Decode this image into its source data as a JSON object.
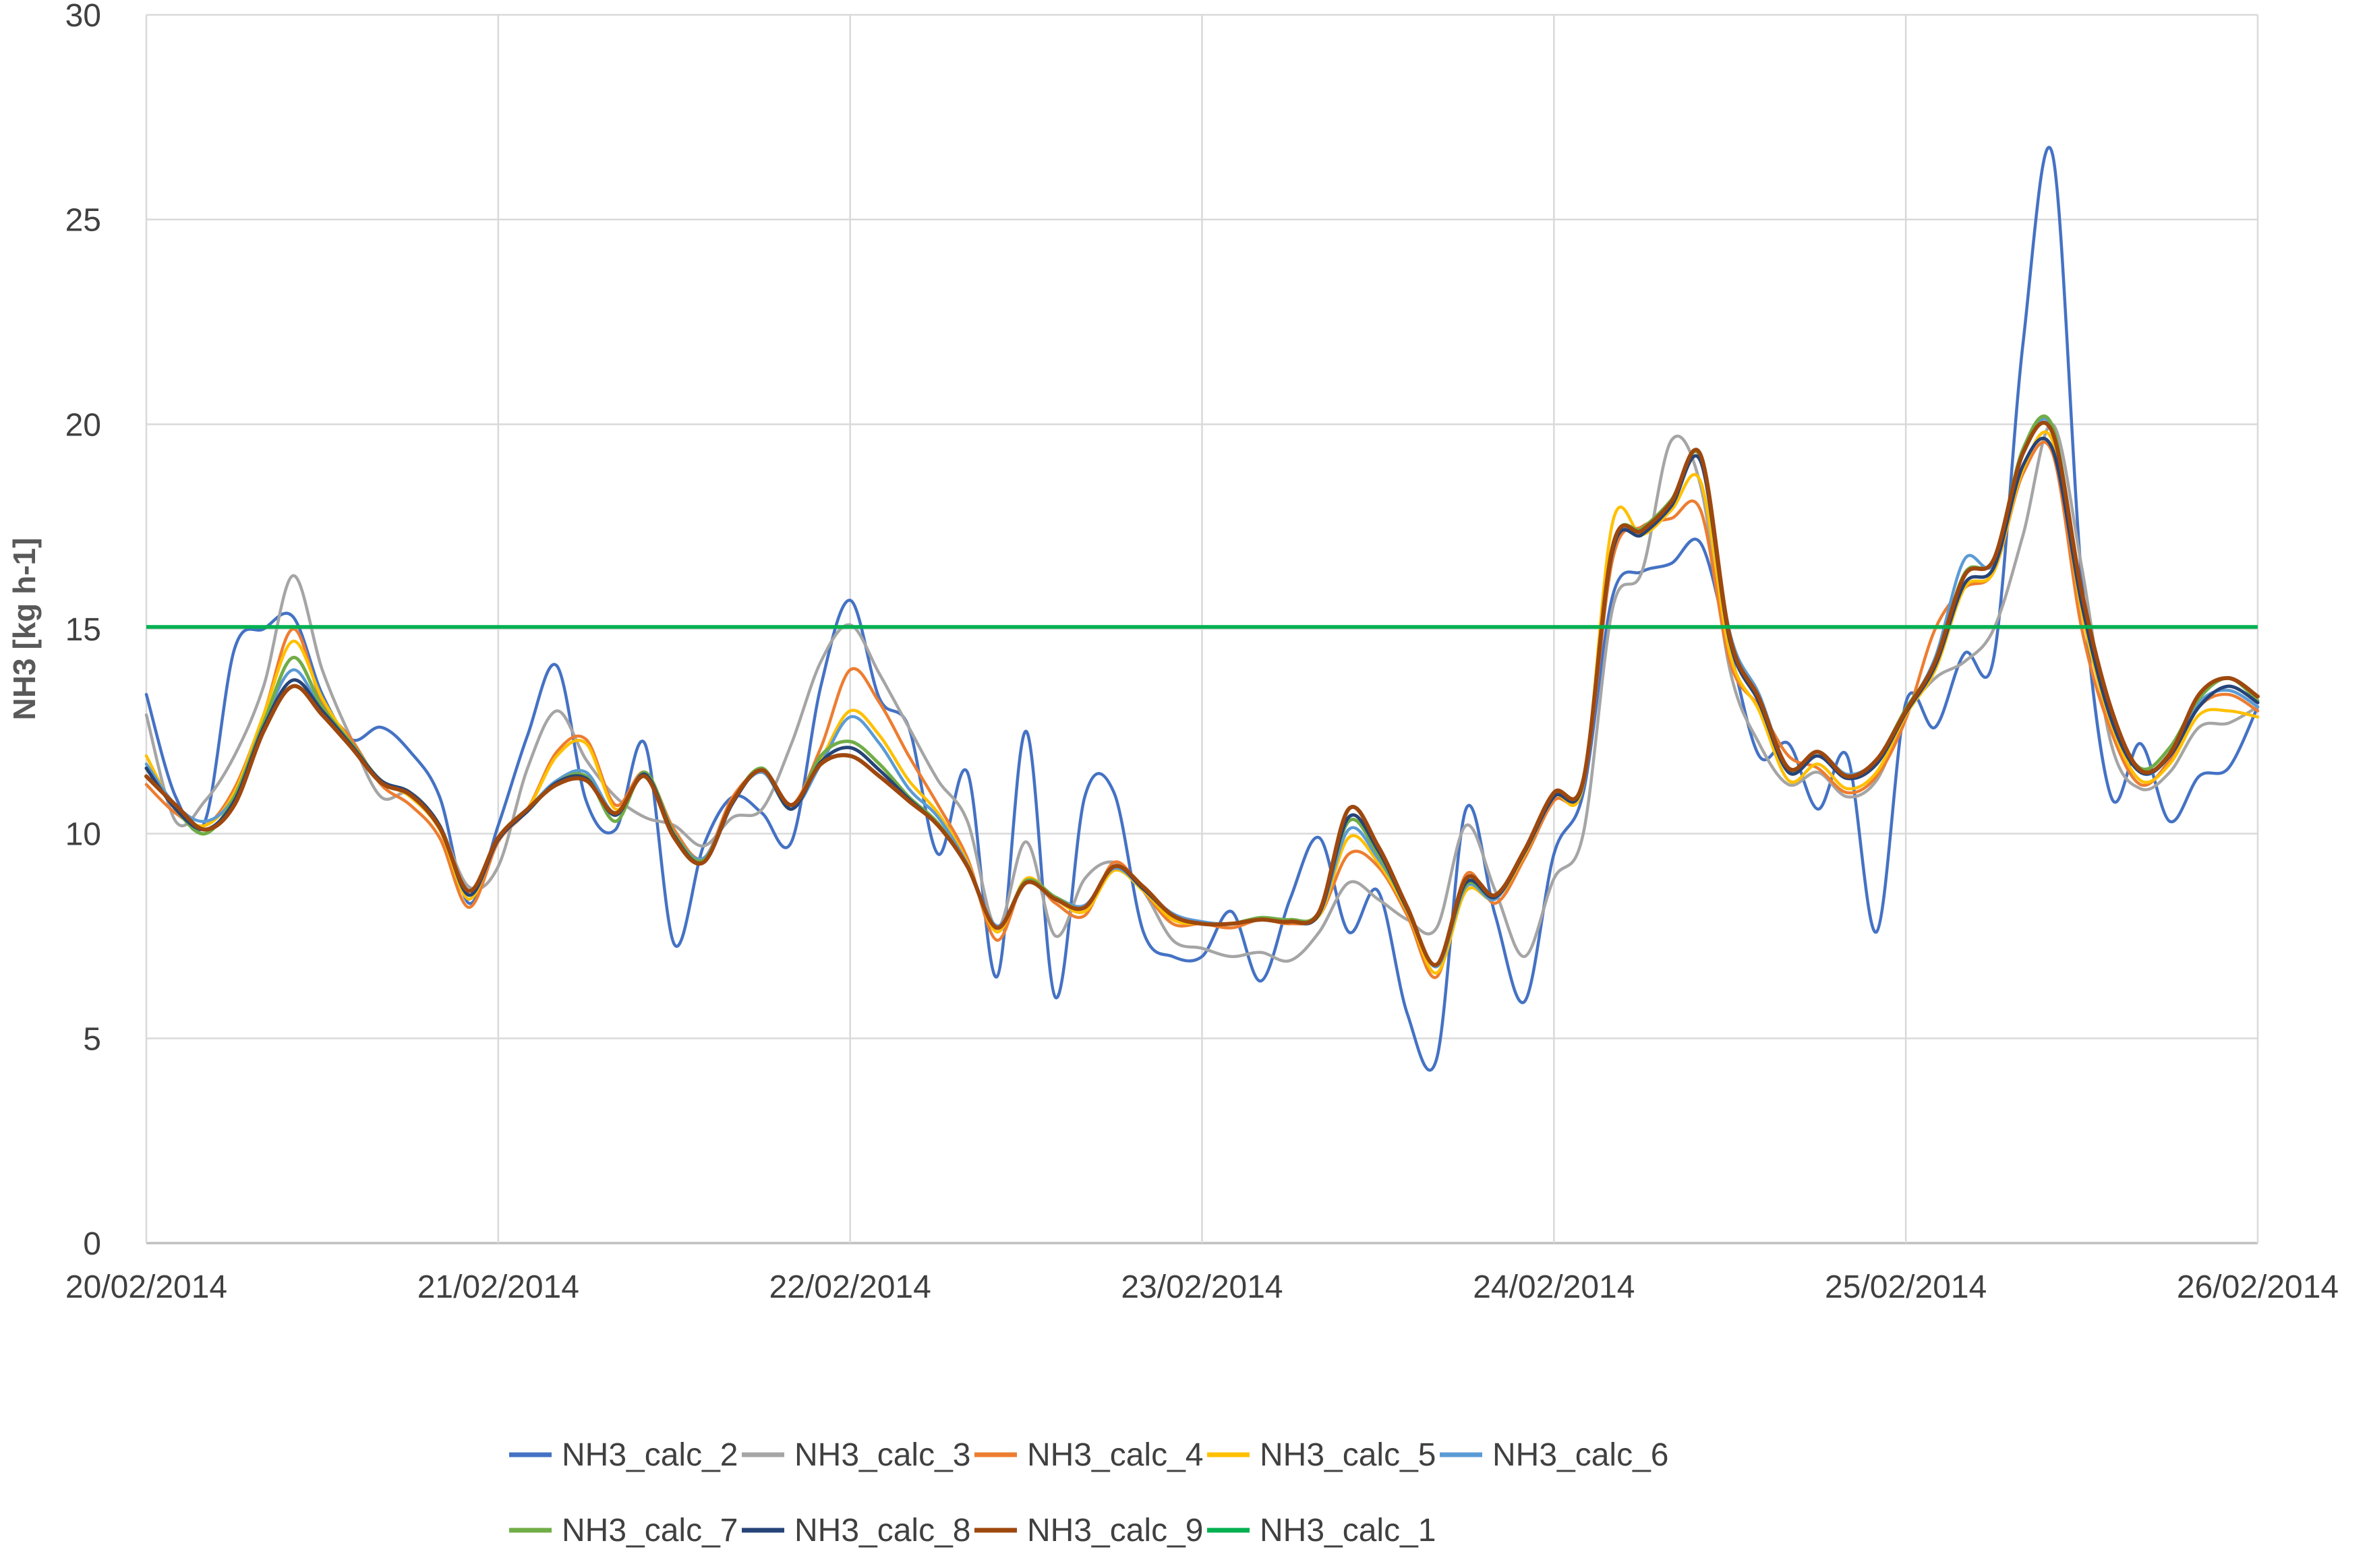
{
  "chart_data": {
    "type": "line",
    "title": "",
    "xlabel": "",
    "ylabel": "NH3 [kg h-1]",
    "ylim": [
      0,
      30
    ],
    "yticks": [
      0,
      5,
      10,
      15,
      20,
      25,
      30
    ],
    "x_tick_labels": [
      "20/02/2014",
      "21/02/2014",
      "22/02/2014",
      "23/02/2014",
      "24/02/2014",
      "25/02/2014",
      "26/02/2014"
    ],
    "x_hours_per_point": 2,
    "x_total_hours": 144,
    "grid": true,
    "legend_position": "bottom",
    "reference_line": {
      "name": "NH3_calc_1",
      "value": 15.05,
      "color": "#00B050"
    },
    "series": [
      {
        "name": "NH3_calc_2",
        "color": "#4472C4",
        "values": [
          13.4,
          10.9,
          10.3,
          14.5,
          15.0,
          15.3,
          13.4,
          12.3,
          12.6,
          12.0,
          10.9,
          8.3,
          10.2,
          12.4,
          14.1,
          10.8,
          10.1,
          12.2,
          7.3,
          9.7,
          10.9,
          10.5,
          9.8,
          13.6,
          15.7,
          13.3,
          12.6,
          9.5,
          11.5,
          6.5,
          12.5,
          6.0,
          10.9,
          11.0,
          7.6,
          7.0,
          7.0,
          8.1,
          6.4,
          8.4,
          9.9,
          7.6,
          8.6,
          5.6,
          4.5,
          10.6,
          8.0,
          5.9,
          9.5,
          11.0,
          15.8,
          16.4,
          16.6,
          17.1,
          14.5,
          11.9,
          12.2,
          10.6,
          11.9,
          7.6,
          13.2,
          12.6,
          14.4,
          14.3,
          22.0,
          26.6,
          16.2,
          10.9,
          12.2,
          10.3,
          11.4,
          11.6,
          13.1
        ]
      },
      {
        "name": "NH3_calc_3",
        "color": "#A5A5A5",
        "values": [
          12.9,
          10.3,
          10.8,
          11.9,
          13.6,
          16.3,
          14.0,
          12.3,
          10.9,
          11.0,
          10.2,
          8.7,
          9.2,
          11.6,
          13.0,
          11.8,
          10.9,
          10.4,
          10.2,
          9.7,
          10.4,
          10.6,
          12.2,
          14.2,
          15.1,
          13.9,
          12.6,
          11.3,
          10.3,
          7.7,
          9.8,
          7.5,
          8.9,
          9.3,
          8.6,
          7.4,
          7.2,
          7.0,
          7.1,
          6.9,
          7.6,
          8.8,
          8.4,
          7.9,
          7.7,
          10.2,
          8.6,
          7.0,
          8.9,
          10.0,
          15.5,
          16.4,
          19.6,
          18.5,
          14.0,
          12.2,
          11.2,
          11.5,
          10.9,
          11.3,
          12.9,
          13.8,
          14.2,
          15.0,
          17.3,
          20.0,
          16.5,
          12.2,
          11.1,
          11.5,
          12.6,
          12.7,
          13.1
        ]
      },
      {
        "name": "NH3_calc_4",
        "color": "#ED7D31",
        "values": [
          11.2,
          10.5,
          10.2,
          11.1,
          12.9,
          15.0,
          13.2,
          12.3,
          11.2,
          10.7,
          9.9,
          8.2,
          9.8,
          10.6,
          12.0,
          12.3,
          10.7,
          11.5,
          10.1,
          9.4,
          10.9,
          11.5,
          10.7,
          12.1,
          14.0,
          13.2,
          11.9,
          10.7,
          9.4,
          7.4,
          8.9,
          8.3,
          8.0,
          9.3,
          8.6,
          7.8,
          7.8,
          7.7,
          7.9,
          7.8,
          8.0,
          9.5,
          9.2,
          8.0,
          6.5,
          9.0,
          8.3,
          9.4,
          10.8,
          11.2,
          16.7,
          17.5,
          17.7,
          17.9,
          14.2,
          13.1,
          11.9,
          11.6,
          11.0,
          11.4,
          12.8,
          15.0,
          16.0,
          16.4,
          18.8,
          19.3,
          15.0,
          12.5,
          11.2,
          11.8,
          13.1,
          13.4,
          13.0
        ]
      },
      {
        "name": "NH3_calc_5",
        "color": "#FFC000",
        "values": [
          11.9,
          10.6,
          10.2,
          11.0,
          12.9,
          14.7,
          13.3,
          12.2,
          11.3,
          10.9,
          10.1,
          8.4,
          9.9,
          10.6,
          11.9,
          12.2,
          10.6,
          11.4,
          10.0,
          9.4,
          10.8,
          11.5,
          10.6,
          11.8,
          13.0,
          12.4,
          11.3,
          10.5,
          9.3,
          7.6,
          8.9,
          8.4,
          8.1,
          9.1,
          8.6,
          7.9,
          7.8,
          7.8,
          7.9,
          7.9,
          8.0,
          9.9,
          9.3,
          8.1,
          6.6,
          8.6,
          8.4,
          9.5,
          10.9,
          11.2,
          17.6,
          17.3,
          17.9,
          18.6,
          14.4,
          13.0,
          11.3,
          11.7,
          11.1,
          11.5,
          12.9,
          14.0,
          16.0,
          16.4,
          18.9,
          19.6,
          15.4,
          12.7,
          11.3,
          11.7,
          12.9,
          13.0,
          12.85
        ]
      },
      {
        "name": "NH3_calc_6",
        "color": "#5B9BD5",
        "values": [
          11.7,
          10.7,
          10.3,
          10.9,
          12.7,
          14.0,
          13.0,
          12.2,
          11.3,
          11.0,
          10.2,
          8.6,
          9.9,
          10.6,
          11.3,
          11.5,
          10.5,
          11.4,
          10.0,
          9.4,
          10.8,
          11.5,
          10.6,
          11.7,
          12.85,
          12.2,
          11.1,
          10.4,
          9.25,
          7.75,
          8.8,
          8.45,
          8.25,
          9.15,
          8.65,
          8.05,
          7.85,
          7.8,
          7.95,
          7.9,
          8.05,
          10.1,
          9.4,
          8.2,
          6.75,
          8.7,
          8.4,
          9.6,
          10.95,
          11.25,
          16.9,
          17.4,
          18.1,
          19.1,
          14.9,
          13.4,
          11.6,
          12.0,
          11.45,
          11.8,
          13.0,
          14.3,
          16.7,
          16.6,
          19.3,
          19.9,
          15.8,
          13.0,
          11.5,
          11.9,
          13.2,
          13.5,
          13.1
        ]
      },
      {
        "name": "NH3_calc_7",
        "color": "#70AD47",
        "values": [
          11.6,
          10.6,
          10.0,
          10.9,
          12.7,
          14.3,
          13.1,
          12.2,
          11.3,
          11.0,
          10.2,
          8.5,
          9.9,
          10.55,
          11.25,
          11.4,
          10.3,
          11.5,
          10.0,
          9.35,
          10.8,
          11.6,
          10.6,
          11.9,
          12.25,
          11.7,
          10.9,
          10.25,
          9.2,
          7.7,
          8.85,
          8.45,
          8.2,
          9.2,
          8.7,
          8.0,
          7.8,
          7.8,
          7.95,
          7.9,
          8.1,
          10.3,
          9.5,
          8.15,
          6.8,
          8.75,
          8.45,
          9.55,
          10.9,
          11.3,
          17.0,
          17.45,
          18.15,
          19.2,
          14.8,
          13.3,
          11.55,
          12.0,
          11.4,
          11.8,
          13.05,
          14.2,
          16.35,
          16.7,
          19.4,
          19.95,
          15.8,
          12.9,
          11.6,
          12.1,
          13.3,
          13.8,
          13.25
        ]
      },
      {
        "name": "NH3_calc_8",
        "color": "#264478",
        "values": [
          11.6,
          10.6,
          10.1,
          10.8,
          12.6,
          13.75,
          13.0,
          12.15,
          11.3,
          11.0,
          10.2,
          8.5,
          9.85,
          10.55,
          11.25,
          11.35,
          10.45,
          11.45,
          9.95,
          9.3,
          10.75,
          11.55,
          10.6,
          11.75,
          12.1,
          11.55,
          10.85,
          10.2,
          9.2,
          7.7,
          8.8,
          8.4,
          8.2,
          9.2,
          8.65,
          8.0,
          7.8,
          7.8,
          7.9,
          7.85,
          8.05,
          10.4,
          9.6,
          8.15,
          6.8,
          8.8,
          8.45,
          9.55,
          10.9,
          11.25,
          16.9,
          17.3,
          18.0,
          19.1,
          14.7,
          13.2,
          11.5,
          11.9,
          11.35,
          11.7,
          12.95,
          14.1,
          16.1,
          16.5,
          19.0,
          19.4,
          15.6,
          12.8,
          11.5,
          11.9,
          13.1,
          13.6,
          13.2
        ]
      },
      {
        "name": "NH3_calc_9",
        "color": "#9E480E",
        "values": [
          11.4,
          10.7,
          10.1,
          10.7,
          12.5,
          13.6,
          12.9,
          12.1,
          11.25,
          10.95,
          10.15,
          8.6,
          9.9,
          10.6,
          11.2,
          11.3,
          10.5,
          11.4,
          9.9,
          9.3,
          10.8,
          11.55,
          10.7,
          11.7,
          11.9,
          11.4,
          10.8,
          10.2,
          9.2,
          7.7,
          8.8,
          8.4,
          8.2,
          9.2,
          8.7,
          8.0,
          7.8,
          7.8,
          7.9,
          7.85,
          8.1,
          10.6,
          9.7,
          8.2,
          6.8,
          8.9,
          8.5,
          9.6,
          11.0,
          11.3,
          17.0,
          17.4,
          18.1,
          19.25,
          14.8,
          13.3,
          11.6,
          12.0,
          11.4,
          11.8,
          13.0,
          14.2,
          16.3,
          16.7,
          19.3,
          19.8,
          15.9,
          13.05,
          11.55,
          11.95,
          13.4,
          13.8,
          13.35
        ]
      }
    ],
    "legend": {
      "items": [
        {
          "label": "NH3_calc_2",
          "color": "#4472C4"
        },
        {
          "label": "NH3_calc_3",
          "color": "#A5A5A5"
        },
        {
          "label": "NH3_calc_4",
          "color": "#ED7D31"
        },
        {
          "label": "NH3_calc_5",
          "color": "#FFC000"
        },
        {
          "label": "NH3_calc_6",
          "color": "#5B9BD5"
        },
        {
          "label": "NH3_calc_7",
          "color": "#70AD47"
        },
        {
          "label": "NH3_calc_8",
          "color": "#264478"
        },
        {
          "label": "NH3_calc_9",
          "color": "#9E480E"
        },
        {
          "label": "NH3_calc_1",
          "color": "#00B050"
        }
      ]
    },
    "colors": {
      "gridline": "#D9D9D9",
      "axis_line": "#BFBFBF",
      "tick_text": "#404040",
      "axis_title_text": "#595959"
    }
  }
}
